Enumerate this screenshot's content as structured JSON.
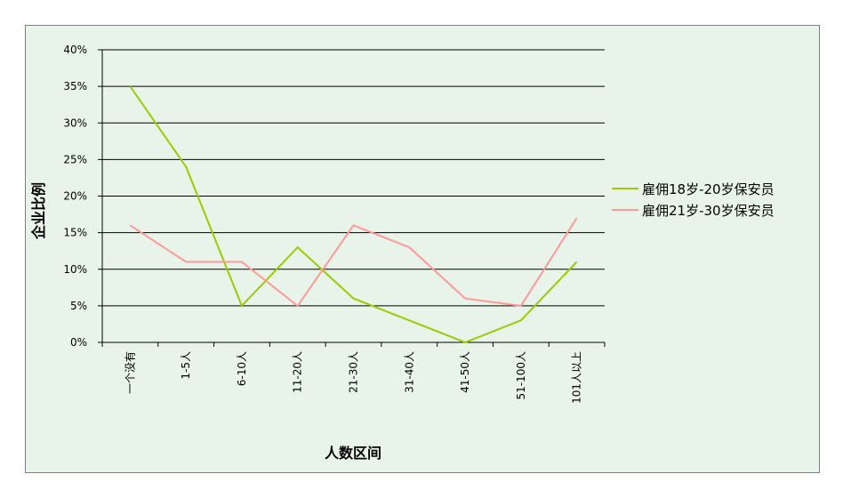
{
  "chart_data": {
    "type": "line",
    "title": "",
    "xlabel": "人数区间",
    "ylabel": "企业比例",
    "categories": [
      "一个没有",
      "1-5人",
      "6-10人",
      "11-20人",
      "21-30人",
      "31-40人",
      "41-50人",
      "51-100人",
      "101人以上"
    ],
    "ylim": [
      0,
      40
    ],
    "yticks": [
      "0%",
      "5%",
      "10%",
      "15%",
      "20%",
      "25%",
      "30%",
      "35%",
      "40%"
    ],
    "grid": true,
    "legend_position": "right",
    "series": [
      {
        "name": "雇佣18岁-20岁保安员",
        "color": "#99cc00",
        "values": [
          35,
          24,
          5,
          13,
          6,
          3,
          0,
          3,
          11
        ]
      },
      {
        "name": "雇佣21岁-30岁保安员",
        "color": "#ff9999",
        "values": [
          16,
          11,
          11,
          5,
          16,
          13,
          6,
          5,
          17
        ]
      }
    ]
  }
}
